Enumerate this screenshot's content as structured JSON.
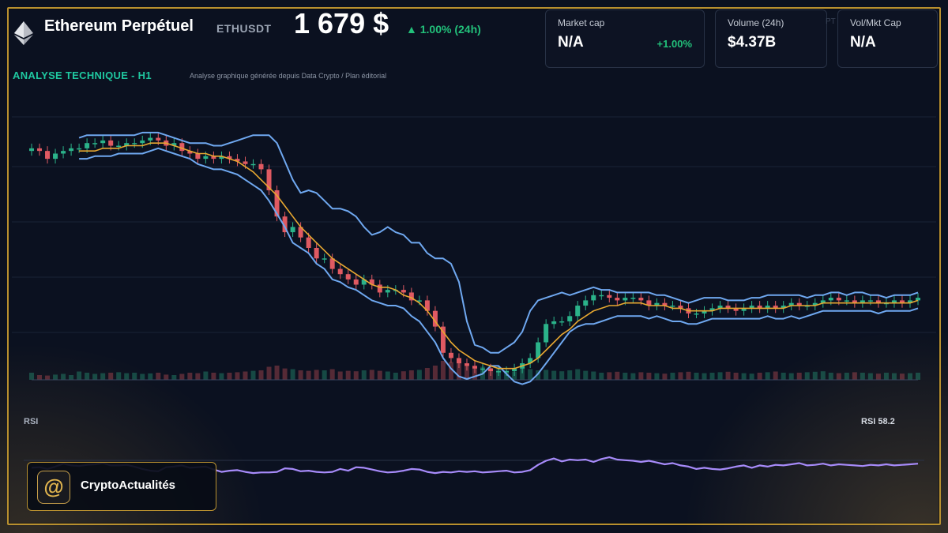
{
  "header": {
    "asset_name": "Ethereum Perpétuel",
    "ticker": "ETHUSDT",
    "price": "1 679 $",
    "change": "▲ 1.00% (24h)",
    "change_color": "#22c07a",
    "icon": "ethereum-icon"
  },
  "stats": [
    {
      "label": "Market cap",
      "value": "N/A",
      "delta": "+1.00%"
    },
    {
      "label": "Volume (24h)",
      "value": "$4.37B"
    },
    {
      "label": "Vol/Mkt Cap",
      "value": "N/A"
    }
  ],
  "stats_fragment": "PT",
  "analysis": {
    "title": "ANALYSE TECHNIQUE - H1",
    "subtitle": "Analyse graphique générée depuis Data Crypto / Plan éditorial"
  },
  "rsi": {
    "label": "RSI",
    "value_label": "RSI 58.2"
  },
  "brand": {
    "name": "CryptoActualités",
    "icon": "at-sign-logo-icon"
  },
  "colors": {
    "background": "#0b1120",
    "frame": "#b8902f",
    "up_candle": "#2bb38a",
    "down_candle": "#e05a62",
    "bollinger": "#6fa8f0",
    "moving_average": "#e8a830",
    "rsi_line": "#a78bfa",
    "accent": "#1fc8a0"
  },
  "chart_data": {
    "type": "line",
    "title": "",
    "xlabel": "",
    "ylabel": "",
    "indicators": [
      "candlesticks",
      "bollinger-bands",
      "moving-average",
      "volume",
      "rsi"
    ],
    "grid": true,
    "x": [
      0,
      10,
      20,
      30,
      40,
      50,
      60,
      70,
      80,
      90,
      100,
      110,
      120,
      130,
      140,
      150,
      160,
      170,
      180,
      190,
      200,
      210,
      220,
      230,
      240,
      250,
      260,
      270,
      280,
      290,
      300,
      310,
      320,
      330,
      340,
      350,
      360,
      370,
      380,
      390,
      400,
      410,
      420,
      430,
      440,
      450,
      460,
      470,
      480,
      490,
      500,
      510,
      520,
      530,
      540,
      550,
      560,
      570,
      580,
      590,
      600,
      610,
      620,
      630,
      640,
      650,
      660,
      670,
      680,
      690,
      700,
      710,
      720,
      730,
      740,
      750,
      760,
      770,
      780,
      790,
      800,
      810,
      820,
      830,
      840,
      850,
      860,
      870,
      880,
      890,
      900,
      910,
      920,
      930,
      940,
      950,
      960,
      970,
      980,
      990,
      1000,
      1010,
      1020,
      1030,
      1040,
      1050,
      1060,
      1070,
      1080,
      1090,
      1100,
      1110,
      1120
    ],
    "series": [
      {
        "key": "price",
        "values": [
          88,
          87,
          84,
          86,
          87,
          88,
          88,
          90,
          90,
          91,
          89,
          89,
          90,
          90,
          91,
          92,
          91,
          89,
          90,
          87,
          86,
          84,
          85,
          84,
          85,
          84,
          83,
          82,
          82,
          80,
          72,
          62,
          56,
          58,
          54,
          50,
          46,
          46,
          42,
          40,
          38,
          36,
          38,
          36,
          33,
          34,
          34,
          33,
          30,
          30,
          26,
          20,
          10,
          8,
          6,
          5,
          4,
          4,
          3,
          3,
          3,
          4,
          6,
          8,
          14,
          21,
          22,
          22,
          24,
          28,
          30,
          32,
          32,
          31,
          30,
          31,
          31,
          30,
          28,
          29,
          28,
          28,
          27,
          25,
          25,
          26,
          27,
          28,
          27,
          26,
          27,
          28,
          27,
          28,
          27,
          28,
          29,
          28,
          28,
          29,
          30,
          31,
          30,
          30,
          29,
          30,
          30,
          29,
          29,
          30,
          29,
          30,
          31
        ]
      },
      {
        "key": "bollinger_upper",
        "values": [
          null,
          null,
          null,
          null,
          null,
          null,
          92,
          93,
          93,
          93,
          93,
          93,
          93,
          93,
          94,
          94,
          94,
          93,
          92,
          91,
          90,
          90,
          90,
          89,
          89,
          90,
          91,
          92,
          93,
          93,
          93,
          90,
          83,
          76,
          71,
          72,
          71,
          68,
          65,
          65,
          64,
          62,
          58,
          55,
          56,
          58,
          56,
          55,
          52,
          52,
          48,
          46,
          46,
          44,
          37,
          22,
          13,
          12,
          10,
          10,
          12,
          14,
          18,
          26,
          30,
          31,
          32,
          33,
          32,
          33,
          34,
          35,
          34,
          34,
          33,
          33,
          33,
          33,
          33,
          32,
          32,
          31,
          30,
          29,
          30,
          31,
          31,
          31,
          30,
          30,
          30,
          31,
          31,
          32,
          32,
          32,
          32,
          32,
          31,
          32,
          32,
          33,
          33,
          32,
          33,
          33,
          32,
          32,
          31,
          32,
          32,
          32,
          33
        ]
      },
      {
        "key": "bollinger_lower",
        "values": [
          null,
          null,
          null,
          null,
          null,
          null,
          84,
          84,
          85,
          85,
          85,
          86,
          86,
          86,
          86,
          87,
          88,
          87,
          86,
          85,
          84,
          82,
          81,
          80,
          80,
          79,
          78,
          76,
          74,
          72,
          68,
          63,
          58,
          52,
          50,
          48,
          44,
          42,
          38,
          37,
          35,
          34,
          32,
          30,
          29,
          28,
          28,
          27,
          24,
          22,
          18,
          14,
          8,
          4,
          1,
          0,
          1,
          2,
          5,
          5,
          2,
          -1,
          -2,
          -1,
          2,
          6,
          10,
          14,
          18,
          20,
          21,
          21,
          22,
          23,
          24,
          24,
          24,
          24,
          23,
          24,
          23,
          22,
          22,
          21,
          21,
          22,
          23,
          23,
          23,
          23,
          23,
          23,
          23,
          24,
          23,
          23,
          24,
          23,
          24,
          25,
          26,
          26,
          26,
          26,
          26,
          26,
          26,
          25,
          26,
          26,
          26,
          26,
          27
        ]
      },
      {
        "key": "moving_average",
        "values": [
          null,
          null,
          null,
          null,
          null,
          null,
          87,
          87,
          87,
          88,
          88,
          88,
          89,
          89,
          89,
          90,
          90,
          90,
          89,
          88,
          87,
          86,
          86,
          85,
          85,
          84,
          83,
          81,
          79,
          76,
          73,
          70,
          66,
          62,
          58,
          55,
          52,
          49,
          46,
          44,
          42,
          40,
          38,
          36,
          35,
          35,
          34,
          32,
          31,
          29,
          26,
          22,
          18,
          14,
          11,
          9,
          7,
          6,
          5,
          4,
          4,
          4,
          5,
          6,
          8,
          11,
          14,
          17,
          19,
          22,
          24,
          26,
          27,
          28,
          28,
          29,
          29,
          29,
          28,
          28,
          28,
          27,
          27,
          26,
          26,
          26,
          26,
          27,
          27,
          27,
          27,
          27,
          27,
          27,
          27,
          27,
          28,
          28,
          28,
          28,
          29,
          29,
          29,
          29,
          29,
          29,
          29,
          29,
          29,
          29,
          29,
          29,
          30
        ]
      },
      {
        "key": "volume",
        "values": [
          30,
          20,
          18,
          22,
          25,
          20,
          35,
          30,
          25,
          28,
          30,
          32,
          28,
          30,
          25,
          27,
          30,
          22,
          20,
          25,
          30,
          28,
          35,
          30,
          28,
          30,
          32,
          35,
          38,
          40,
          55,
          60,
          48,
          45,
          40,
          38,
          42,
          40,
          45,
          35,
          38,
          36,
          40,
          42,
          38,
          35,
          30,
          36,
          40,
          42,
          50,
          60,
          80,
          75,
          70,
          65,
          60,
          55,
          50,
          45,
          40,
          35,
          50,
          45,
          40,
          42,
          38,
          36,
          40,
          45,
          38,
          35,
          30,
          32,
          34,
          30,
          28,
          32,
          30,
          28,
          26,
          30,
          32,
          34,
          30,
          28,
          30,
          32,
          34,
          30,
          28,
          26,
          30,
          32,
          35,
          30,
          28,
          30,
          32,
          34,
          36,
          30,
          28,
          30,
          32,
          30,
          28,
          26,
          30,
          28,
          26,
          28,
          30
        ]
      },
      {
        "key": "rsi",
        "values": [
          40,
          41,
          38,
          42,
          47,
          44,
          43,
          45,
          46,
          48,
          44,
          44,
          45,
          42,
          38,
          35,
          34,
          41,
          42,
          44,
          40,
          41,
          42,
          37,
          33,
          35,
          36,
          33,
          31,
          32,
          32,
          33,
          39,
          38,
          34,
          35,
          33,
          32,
          33,
          38,
          35,
          41,
          40,
          37,
          34,
          32,
          33,
          35,
          38,
          37,
          33,
          31,
          33,
          32,
          34,
          33,
          34,
          32,
          33,
          34,
          35,
          32,
          33,
          36,
          45,
          52,
          56,
          51,
          54,
          53,
          54,
          50,
          55,
          58,
          54,
          53,
          52,
          50,
          52,
          49,
          46,
          48,
          44,
          42,
          38,
          40,
          38,
          37,
          39,
          42,
          44,
          40,
          44,
          42,
          45,
          44,
          46,
          48,
          44,
          45,
          47,
          44,
          46,
          45,
          44,
          43,
          45,
          44,
          46,
          44,
          45,
          46,
          47
        ]
      }
    ],
    "ylim": [
      0,
      100
    ],
    "rsi_ylim": [
      0,
      100
    ]
  }
}
